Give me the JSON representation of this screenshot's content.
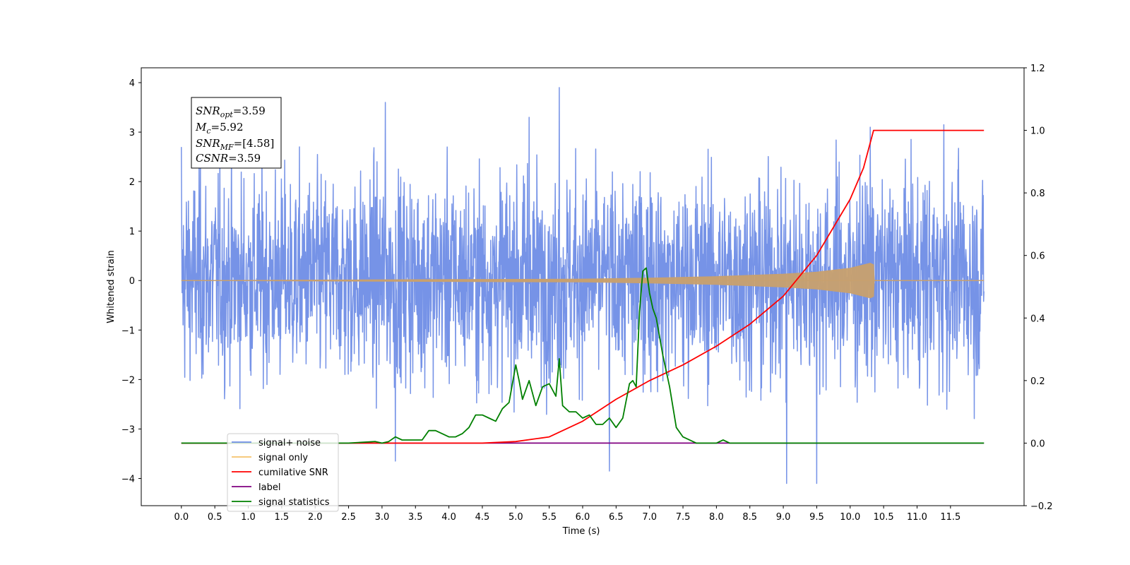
{
  "chart_data": {
    "type": "line",
    "xlabel": "Time (s)",
    "ylabel": "Whitened strain",
    "ylabel_right": "",
    "xlim": [
      -0.6,
      12.6
    ],
    "ylim_left": [
      -4.55,
      4.3
    ],
    "ylim_right": [
      -0.2,
      1.2
    ],
    "x_ticks": [
      0.0,
      0.5,
      1.0,
      1.5,
      2.0,
      2.5,
      3.0,
      3.5,
      4.0,
      4.5,
      5.0,
      5.5,
      6.0,
      6.5,
      7.0,
      7.5,
      8.0,
      8.5,
      9.0,
      9.5,
      10.0,
      10.5,
      11.0,
      11.5
    ],
    "x_tick_labels": [
      "0.0",
      "0.5",
      "1.0",
      "1.5",
      "2.0",
      "2.5",
      "3.0",
      "3.5",
      "4.0",
      "4.5",
      "5.0",
      "5.5",
      "6.0",
      "6.5",
      "7.0",
      "7.5",
      "8.0",
      "8.5",
      "9.0",
      "9.5",
      "10.0",
      "10.5",
      "11.0",
      "11.5"
    ],
    "y_ticks_left": [
      -4,
      -3,
      -2,
      -1,
      0,
      1,
      2,
      3,
      4
    ],
    "y_tick_labels_left": [
      "−4",
      "−3",
      "−2",
      "−1",
      "0",
      "1",
      "2",
      "3",
      "4"
    ],
    "y_ticks_right": [
      -0.2,
      0.0,
      0.2,
      0.4,
      0.6,
      0.8,
      1.0,
      1.2
    ],
    "y_tick_labels_right": [
      "−0.2",
      "0.0",
      "0.2",
      "0.4",
      "0.6",
      "0.8",
      "1.0",
      "1.2"
    ],
    "grid": false,
    "legend_position": "lower-left",
    "legend": [
      {
        "name": "signal+ noise",
        "color": "#6f8de6"
      },
      {
        "name": "signal only",
        "color": "#f5c26b"
      },
      {
        "name": "cumilative SNR",
        "color": "#ff0000"
      },
      {
        "name": "label",
        "color": "#800080"
      },
      {
        "name": "signal statistics",
        "color": "#008000"
      }
    ],
    "annotation": {
      "snr_opt": "3.59",
      "mc": "5.92",
      "snr_mf": "[4.58]",
      "csnr": "3.59"
    },
    "series": [
      {
        "name": "signal+ noise",
        "axis": "left",
        "color": "#6f8de6",
        "x_range": [
          0.0,
          12.0
        ],
        "approx_envelope": [
          -2.6,
          2.7
        ],
        "peak_values": [
          [
            0.0,
            2.7
          ],
          [
            3.05,
            3.6
          ],
          [
            5.2,
            3.3
          ],
          [
            5.65,
            3.9
          ],
          [
            9.05,
            -4.1
          ],
          [
            9.5,
            -4.1
          ],
          [
            6.4,
            -3.85
          ],
          [
            3.2,
            -3.65
          ],
          [
            11.4,
            3.15
          ],
          [
            10.3,
            3.1
          ]
        ]
      },
      {
        "name": "signal only",
        "axis": "left",
        "color": "#c8a06e",
        "x_range": [
          0.0,
          12.0
        ],
        "merger_time": 10.35,
        "amplitude": [
          [
            0.0,
            0.0
          ],
          [
            6.0,
            0.03
          ],
          [
            7.0,
            0.05
          ],
          [
            8.0,
            0.08
          ],
          [
            9.0,
            0.13
          ],
          [
            9.5,
            0.17
          ],
          [
            10.0,
            0.25
          ],
          [
            10.3,
            0.35
          ],
          [
            10.35,
            0.32
          ],
          [
            10.36,
            0.0
          ],
          [
            12.0,
            0.0
          ]
        ]
      },
      {
        "name": "cumilative SNR",
        "axis": "right",
        "color": "#ff0000",
        "x": [
          0.0,
          4.0,
          4.5,
          5.0,
          5.5,
          6.0,
          6.5,
          7.0,
          7.5,
          8.0,
          8.5,
          9.0,
          9.5,
          10.0,
          10.2,
          10.35,
          12.0
        ],
        "values": [
          0.0,
          0.0,
          0.0,
          0.005,
          0.02,
          0.07,
          0.14,
          0.2,
          0.25,
          0.31,
          0.38,
          0.47,
          0.6,
          0.78,
          0.88,
          1.0,
          1.0
        ]
      },
      {
        "name": "label",
        "axis": "right",
        "color": "#800080",
        "x": [
          0.0,
          12.0
        ],
        "values": [
          0.0,
          0.0
        ]
      },
      {
        "name": "signal statistics",
        "axis": "right",
        "color": "#008000",
        "x": [
          0.0,
          2.5,
          2.9,
          3.0,
          3.1,
          3.2,
          3.3,
          3.5,
          3.6,
          3.7,
          3.8,
          3.9,
          4.0,
          4.1,
          4.2,
          4.3,
          4.4,
          4.5,
          4.6,
          4.7,
          4.8,
          4.9,
          5.0,
          5.05,
          5.1,
          5.2,
          5.3,
          5.4,
          5.5,
          5.6,
          5.65,
          5.7,
          5.8,
          5.9,
          6.0,
          6.1,
          6.2,
          6.3,
          6.4,
          6.5,
          6.6,
          6.7,
          6.75,
          6.8,
          6.85,
          6.9,
          6.95,
          7.0,
          7.05,
          7.1,
          7.2,
          7.3,
          7.4,
          7.5,
          7.7,
          8.0,
          8.1,
          8.2,
          8.5,
          9.0,
          12.0
        ],
        "values": [
          0.0,
          0.0,
          0.005,
          0.0,
          0.005,
          0.02,
          0.01,
          0.01,
          0.01,
          0.04,
          0.04,
          0.03,
          0.02,
          0.02,
          0.03,
          0.05,
          0.09,
          0.09,
          0.08,
          0.07,
          0.11,
          0.13,
          0.25,
          0.2,
          0.14,
          0.2,
          0.12,
          0.18,
          0.19,
          0.15,
          0.27,
          0.12,
          0.1,
          0.1,
          0.08,
          0.09,
          0.06,
          0.06,
          0.08,
          0.05,
          0.08,
          0.19,
          0.2,
          0.18,
          0.42,
          0.55,
          0.56,
          0.48,
          0.43,
          0.4,
          0.28,
          0.18,
          0.05,
          0.02,
          0.0,
          0.0,
          0.01,
          0.0,
          0.0,
          0.0,
          0.0
        ]
      }
    ]
  }
}
